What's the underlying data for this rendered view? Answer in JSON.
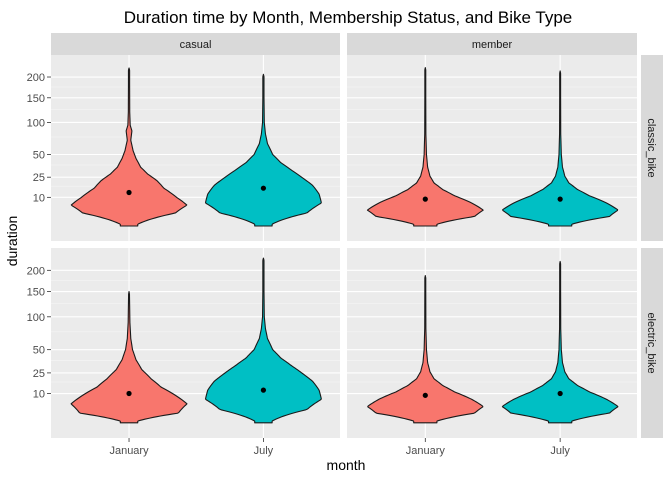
{
  "chart_data": {
    "type": "violin",
    "title": "Duration time by Month, Membership Status, and Bike Type",
    "xlabel": "month",
    "ylabel": "duration",
    "categories": [
      "January",
      "July"
    ],
    "y_scale": "sqrt",
    "ylim": [
      0,
      235
    ],
    "y_ticks": [
      10,
      25,
      50,
      100,
      150,
      200
    ],
    "grid": true,
    "legend": "none",
    "facet_columns": [
      "casual",
      "member"
    ],
    "facet_rows": [
      "classic_bike",
      "electric_bike"
    ],
    "colors": {
      "January": "#F8766D",
      "July": "#00BFC4",
      "panel_bg": "#EBEBEB",
      "strip_bg": "#D9D9D9"
    },
    "panels": [
      {
        "col": "casual",
        "row": "classic_bike",
        "violins": [
          {
            "category": "January",
            "max": 224,
            "median": 13,
            "spread": "narrow-mid"
          },
          {
            "category": "July",
            "max": 207,
            "median": 16,
            "spread": "wide-high"
          }
        ]
      },
      {
        "col": "member",
        "row": "classic_bike",
        "violins": [
          {
            "category": "January",
            "max": 225,
            "median": 9,
            "spread": "low"
          },
          {
            "category": "July",
            "max": 216,
            "median": 9,
            "spread": "low"
          }
        ]
      },
      {
        "col": "casual",
        "row": "electric_bike",
        "violins": [
          {
            "category": "January",
            "max": 150,
            "median": 10,
            "spread": "low-mid"
          },
          {
            "category": "July",
            "max": 232,
            "median": 12,
            "spread": "wide-high"
          }
        ]
      },
      {
        "col": "member",
        "row": "electric_bike",
        "violins": [
          {
            "category": "January",
            "max": 187,
            "median": 9,
            "spread": "low"
          },
          {
            "category": "July",
            "max": 223,
            "median": 10,
            "spread": "low"
          }
        ]
      }
    ]
  }
}
